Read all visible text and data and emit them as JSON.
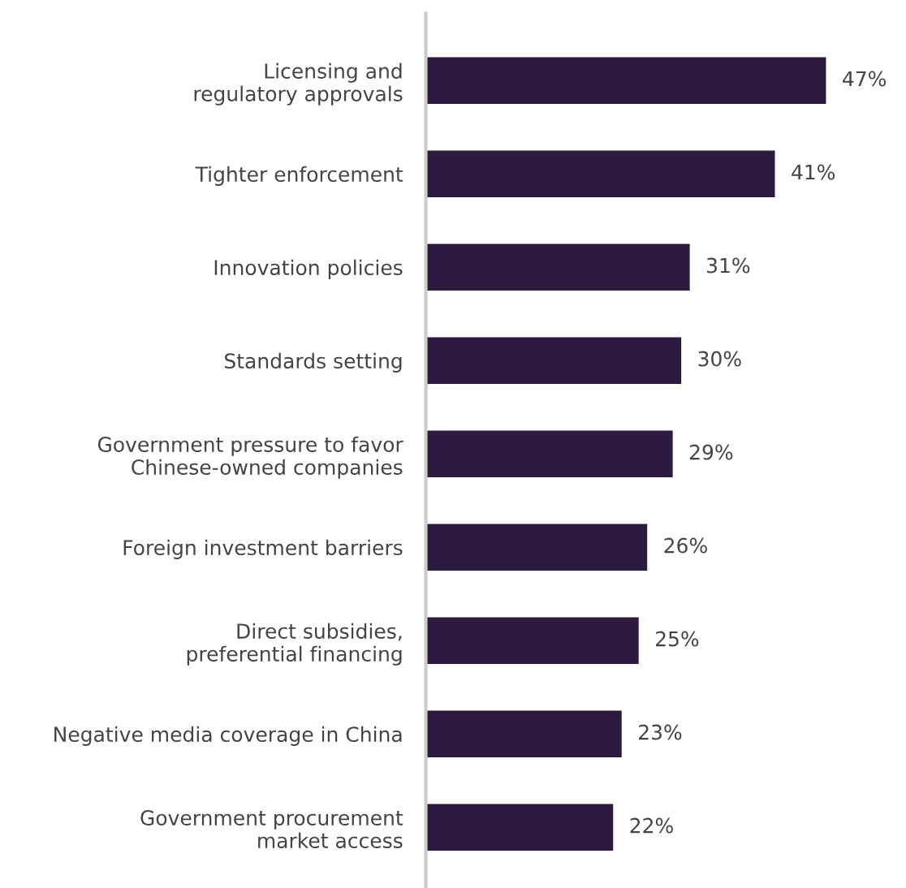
{
  "chart_data": {
    "type": "bar",
    "orientation": "horizontal",
    "categories": [
      "Licensing and\nregulatory approvals",
      "Tighter enforcement",
      "Innovation policies",
      "Standards setting",
      "Government pressure to favor\nChinese-owned companies",
      "Foreign investment barriers",
      "Direct subsidies,\npreferential financing",
      "Negative media coverage in China",
      "Government procurement\nmarket access"
    ],
    "values": [
      47,
      41,
      31,
      30,
      29,
      26,
      25,
      23,
      22
    ],
    "value_labels": [
      "47%",
      "41%",
      "31%",
      "30%",
      "29%",
      "26%",
      "25%",
      "23%",
      "22%"
    ],
    "color": "#2b1a3d",
    "grid": false,
    "tick_labels": "y"
  }
}
